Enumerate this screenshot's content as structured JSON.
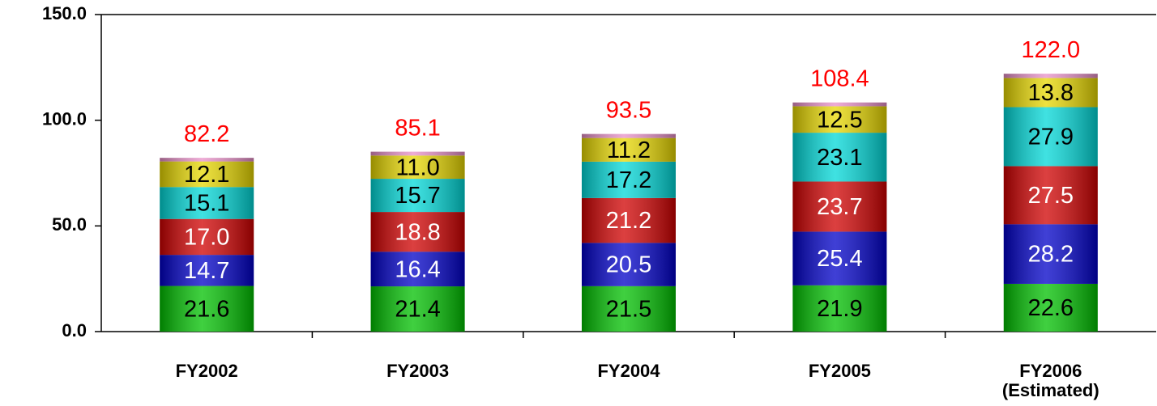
{
  "chart_data": {
    "type": "stacked_bar",
    "categories": [
      "FY2002",
      "FY2003",
      "FY2004",
      "FY2005",
      "FY2006\n(Estimated)"
    ],
    "series": [
      {
        "color": "#00c000",
        "label_color": "#000000",
        "values": [
          21.6,
          21.4,
          21.5,
          21.9,
          22.6
        ],
        "value_labels": [
          "21.6",
          "21.4",
          "21.5",
          "21.9",
          "22.6"
        ]
      },
      {
        "color": "#0000c8",
        "label_color": "#ffffff",
        "values": [
          14.7,
          16.4,
          20.5,
          25.4,
          28.2
        ],
        "value_labels": [
          "14.7",
          "16.4",
          "20.5",
          "25.4",
          "28.2"
        ]
      },
      {
        "color": "#d00000",
        "label_color": "#ffffff",
        "values": [
          17.0,
          18.8,
          21.2,
          23.7,
          27.5
        ],
        "value_labels": [
          "17.0",
          "18.8",
          "21.2",
          "23.7",
          "27.5"
        ]
      },
      {
        "color": "#00d8d8",
        "label_color": "#000000",
        "values": [
          15.1,
          15.7,
          17.2,
          23.1,
          27.9
        ],
        "value_labels": [
          "15.1",
          "15.7",
          "17.2",
          "23.1",
          "27.9"
        ]
      },
      {
        "color": "#e8d800",
        "label_color": "#000000",
        "values": [
          12.1,
          11.0,
          11.2,
          12.5,
          13.8
        ],
        "value_labels": [
          "12.1",
          "11.0",
          "11.2",
          "12.5",
          "13.8"
        ]
      },
      {
        "color": "#e890c8",
        "values": [
          1.7,
          1.8,
          1.9,
          1.8,
          2.0
        ]
      }
    ],
    "totals": [
      82.2,
      85.1,
      93.5,
      108.4,
      122.0
    ],
    "total_labels": [
      "82.2",
      "85.1",
      "93.5",
      "108.4",
      "122.0"
    ],
    "total_color": "#ff0000",
    "ylim": [
      0,
      150
    ],
    "yticks": [
      {
        "value": 0,
        "label": "0.0"
      },
      {
        "value": 50,
        "label": "50.0"
      },
      {
        "value": 100,
        "label": "100.0"
      },
      {
        "value": 150,
        "label": "150.0"
      }
    ],
    "grid": false
  }
}
